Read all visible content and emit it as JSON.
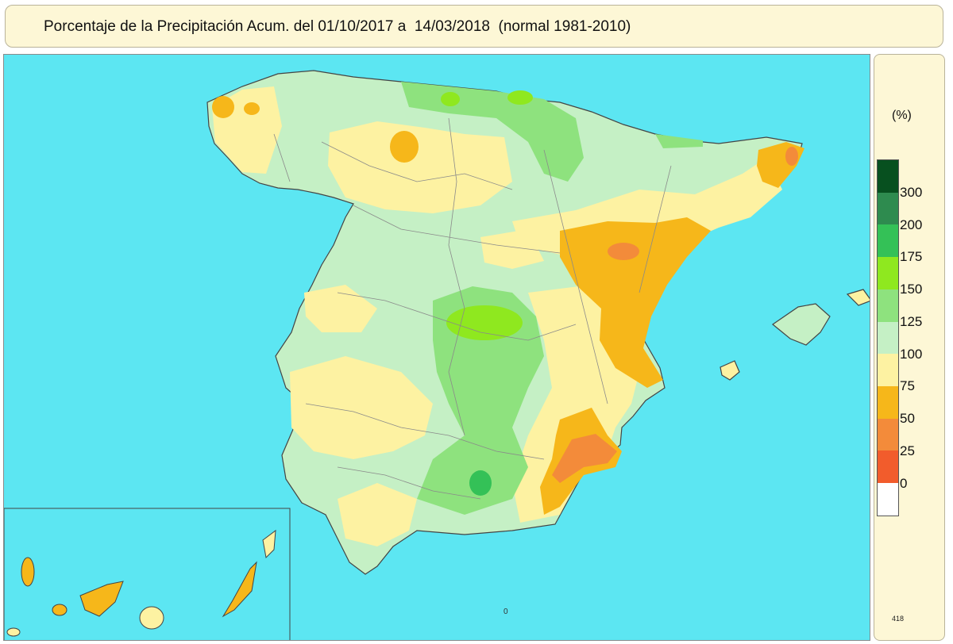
{
  "title": "Porcentaje de la Precipitación Acum. del 01/10/2017 a  14/03/2018  (normal 1981-2010)",
  "legend": {
    "unit": "(%)",
    "ticks": [
      "300",
      "200",
      "175",
      "150",
      "125",
      "100",
      "75",
      "50",
      "25",
      "0"
    ],
    "colors": [
      "#07501f",
      "#2e8b4f",
      "#34c157",
      "#8fe81f",
      "#8ee27e",
      "#c5f0c5",
      "#fdf2a2",
      "#f6b71a",
      "#f38b3a",
      "#f25c2c",
      "#fff"
    ],
    "code": "418"
  },
  "map_marks": {
    "zero": "0"
  },
  "colors": {
    "sea": "#5ce6f2",
    "light_green": "#c5f0c5",
    "pale_yellow": "#fdf2a2",
    "orange": "#f6b71a",
    "dark_orange": "#f38b3a",
    "green_125_150": "#8ee27e",
    "green_150_175": "#8fe81f",
    "green_175_200": "#34c157"
  }
}
